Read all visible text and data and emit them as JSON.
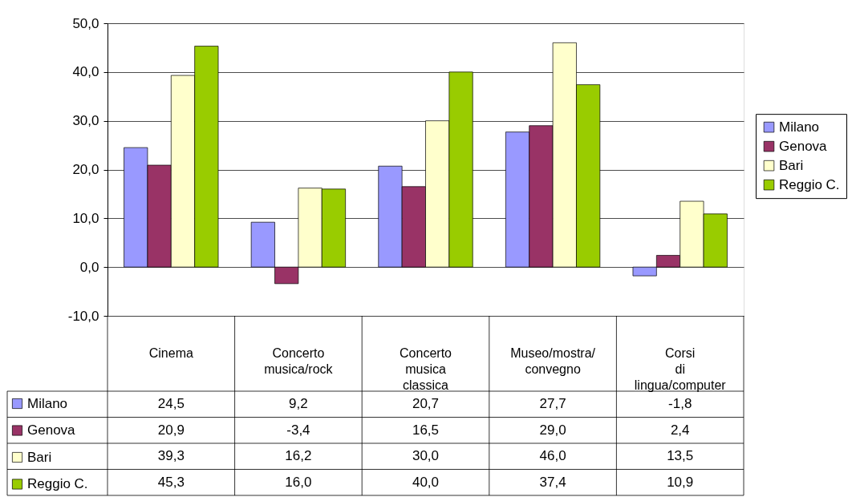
{
  "chart_data": {
    "type": "bar",
    "categories": [
      "Cinema",
      "Concerto musica/rock",
      "Concerto musica classica",
      "Museo/mostra/ convegno",
      "Corsi di lingua/computer"
    ],
    "series": [
      {
        "name": "Milano",
        "color": "#9999ff",
        "values": [
          24.5,
          9.2,
          20.7,
          27.7,
          -1.8
        ],
        "value_labels": [
          "24,5",
          "9,2",
          "20,7",
          "27,7",
          "-1,8"
        ]
      },
      {
        "name": "Genova",
        "color": "#993366",
        "values": [
          20.9,
          -3.4,
          16.5,
          29.0,
          2.4
        ],
        "value_labels": [
          "20,9",
          "-3,4",
          "16,5",
          "29,0",
          "2,4"
        ]
      },
      {
        "name": "Bari",
        "color": "#ffffcc",
        "values": [
          39.3,
          16.2,
          30.0,
          46.0,
          13.5
        ],
        "value_labels": [
          "39,3",
          "16,2",
          "30,0",
          "46,0",
          "13,5"
        ]
      },
      {
        "name": "Reggio C.",
        "color": "#99cc00",
        "values": [
          45.3,
          16.0,
          40.0,
          37.4,
          10.9
        ],
        "value_labels": [
          "45,3",
          "16,0",
          "40,0",
          "37,4",
          "10,9"
        ]
      }
    ],
    "ylim": [
      -10,
      50
    ],
    "yticks": [
      {
        "value": -10,
        "label": "-10,0"
      },
      {
        "value": 0,
        "label": "0,0"
      },
      {
        "value": 10,
        "label": "10,0"
      },
      {
        "value": 20,
        "label": "20,0"
      },
      {
        "value": 30,
        "label": "30,0"
      },
      {
        "value": 40,
        "label": "40,0"
      },
      {
        "value": 50,
        "label": "50,0"
      }
    ],
    "grid": "y",
    "legend": "right"
  }
}
